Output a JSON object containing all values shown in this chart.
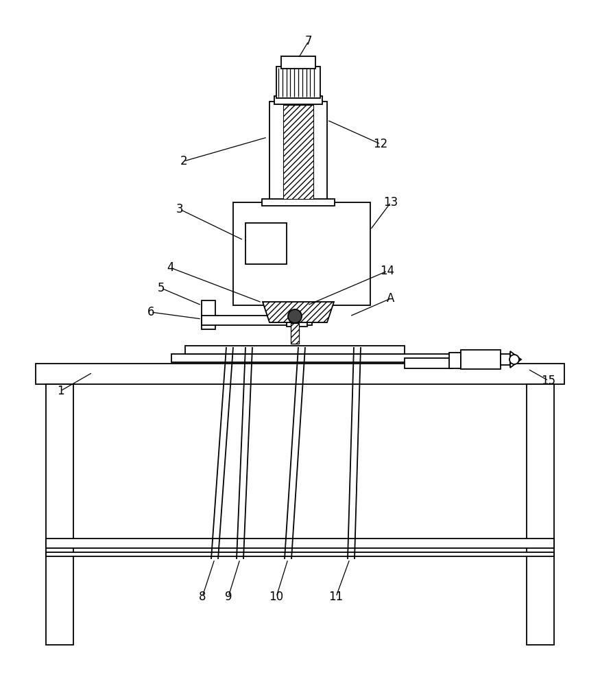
{
  "bg_color": "#ffffff",
  "fig_width": 8.75,
  "fig_height": 10.0,
  "lw": 1.3
}
